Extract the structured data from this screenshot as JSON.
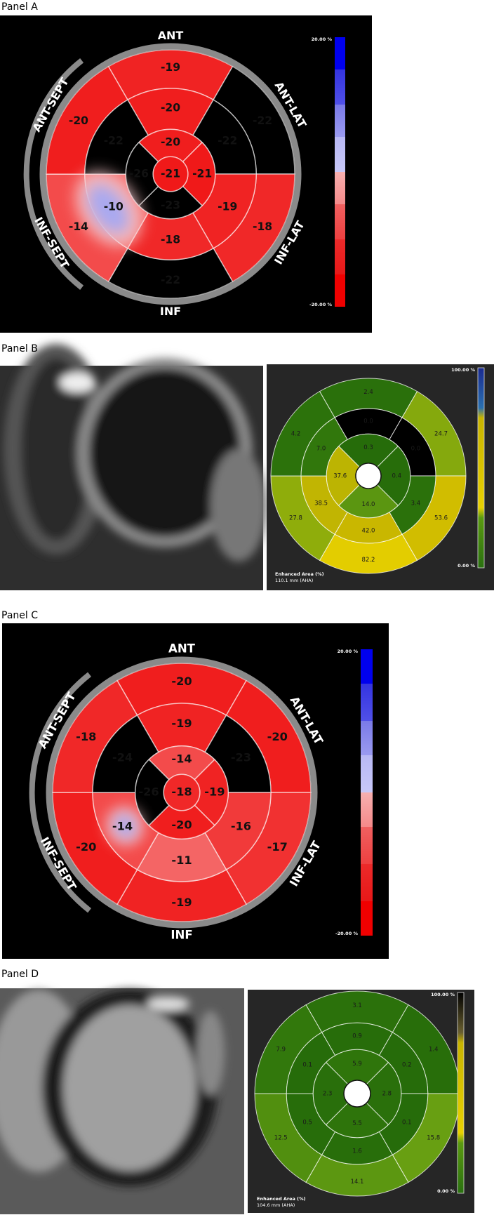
{
  "panels": [
    {
      "label": "Panel A",
      "map": {
        "directions": [
          "ANT",
          "ANT-LAT",
          "INF-LAT",
          "INF",
          "INF-SEPT",
          "ANT-SEPT"
        ],
        "basal": [
          "-19",
          "-22",
          "-18",
          "-22",
          "-14",
          "-20"
        ],
        "mid": [
          "-20",
          "-22",
          "-19",
          "-18",
          "-10",
          "-22"
        ],
        "apical": [
          "-20",
          "-21",
          "-23",
          "-26"
        ],
        "apex": "-21",
        "scale_max": "20.00 %",
        "scale_min": "-20.00 %"
      }
    },
    {
      "label": "Panel B",
      "map": {
        "basal": [
          "2.4",
          "24.7",
          "53.6",
          "82.2",
          "27.8",
          "4.2"
        ],
        "mid": [
          "0.0",
          "0.0",
          "3.4",
          "42.0",
          "38.5",
          "7.0"
        ],
        "apical": [
          "0.3",
          "0.4",
          "14.0",
          "37.6"
        ],
        "caption": [
          "Enhanced Area (%)",
          "110.1 mm (AHA)"
        ],
        "scale_max": "100.00 %",
        "scale_min": "0.00 %"
      }
    },
    {
      "label": "Panel C",
      "map": {
        "directions": [
          "ANT",
          "ANT-LAT",
          "INF-LAT",
          "INF",
          "INF-SEPT",
          "ANT-SEPT"
        ],
        "basal": [
          "-20",
          "-20",
          "-17",
          "-19",
          "-20",
          "-18"
        ],
        "mid": [
          "-19",
          "-23",
          "-16",
          "-11",
          "-14",
          "-24"
        ],
        "apical": [
          "-14",
          "-19",
          "-20",
          "-26"
        ],
        "apex": "-18",
        "scale_max": "20.00 %",
        "scale_min": "-20.00 %"
      }
    },
    {
      "label": "Panel D",
      "map": {
        "basal": [
          "3.1",
          "1.4",
          "15.8",
          "14.1",
          "12.5",
          "7.9"
        ],
        "mid": [
          "0.9",
          "0.2",
          "0.1",
          "1.6",
          "0.5",
          "0.1"
        ],
        "apical": [
          "5.9",
          "2.8",
          "5.5",
          "2.3"
        ],
        "caption": [
          "Enhanced Area (%)",
          "104.6 mm (AHA)"
        ],
        "scale_max": "100.00 %",
        "scale_min": "0.00 %"
      }
    }
  ]
}
